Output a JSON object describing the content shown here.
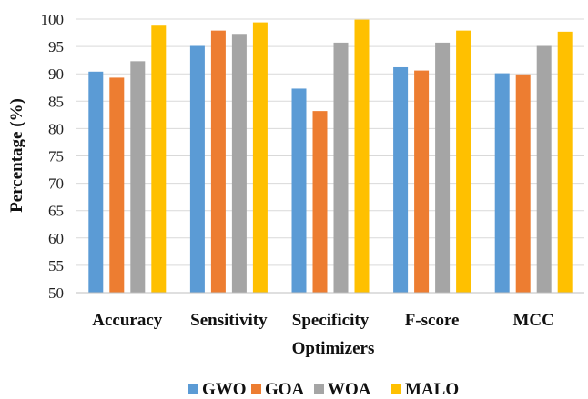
{
  "chart_data": {
    "type": "bar",
    "xlabel": "Optimizers",
    "ylabel": "Percentage (%)",
    "ylim": [
      50,
      100
    ],
    "yticks": [
      50,
      55,
      60,
      65,
      70,
      75,
      80,
      85,
      90,
      95,
      100
    ],
    "grid": true,
    "legend_position": "bottom",
    "categories": [
      "Accuracy",
      "Sensitivity",
      "Specificity",
      "F-score",
      "MCC"
    ],
    "series": [
      {
        "name": "GWO",
        "color": "#5b9bd5",
        "values": [
          90.4,
          95.1,
          87.3,
          91.2,
          90.1
        ]
      },
      {
        "name": "GOA",
        "color": "#ed7d31",
        "values": [
          89.3,
          97.9,
          83.2,
          90.6,
          89.9
        ]
      },
      {
        "name": "WOA",
        "color": "#a5a5a5",
        "values": [
          92.3,
          97.3,
          95.7,
          95.7,
          95.1
        ]
      },
      {
        "name": "MALO",
        "color": "#ffc000",
        "values": [
          98.8,
          99.4,
          99.9,
          97.9,
          97.7
        ]
      }
    ]
  }
}
